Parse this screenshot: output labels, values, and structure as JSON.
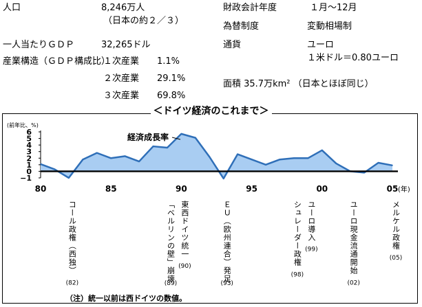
{
  "info": {
    "population_label": "人口",
    "population_value": "8,246万人",
    "population_note": "（日本の約２／３）",
    "gdp_per_capita_label": "一人当たりＧＤＰ",
    "gdp_per_capita_value": "32,265ドル",
    "industry_label": "産業構造（ＧＤＰ構成比）",
    "industries": [
      {
        "name": "１次産業",
        "share": "1.1%"
      },
      {
        "name": "２次産業",
        "share": "29.1%"
      },
      {
        "name": "３次産業",
        "share": "69.8%"
      }
    ],
    "fiscal_year_label": "財政会計年度",
    "fiscal_year_value": "１月〜12月",
    "fx_label": "為替制度",
    "fx_value": "変動相場制",
    "currency_label": "通貨",
    "currency_value": "ユーロ",
    "rate_value": "１米ドル＝0.80ユーロ",
    "area_text": "面積 35.7万km² （日本とほぼ同じ）"
  },
  "chart_data": {
    "type": "area",
    "title": "＜ドイツ経済のこれまで＞",
    "ylabel": "(前年比、%)",
    "series": [
      {
        "name": "経済成長率",
        "x": [
          1980,
          1981,
          1982,
          1983,
          1984,
          1985,
          1986,
          1987,
          1988,
          1989,
          1990,
          1991,
          1992,
          1993,
          1994,
          1995,
          1996,
          1997,
          1998,
          1999,
          2000,
          2001,
          2002,
          2003,
          2004,
          2005
        ],
        "values": [
          1.1,
          0.3,
          -1.0,
          1.8,
          2.8,
          2.0,
          2.3,
          1.5,
          3.8,
          3.6,
          5.7,
          5.1,
          2.2,
          -1.1,
          2.6,
          1.8,
          1.0,
          1.8,
          2.0,
          2.0,
          3.2,
          1.2,
          0.0,
          -0.2,
          1.3,
          0.9
        ]
      }
    ],
    "xticks": [
      {
        "value": 1980,
        "label": "80"
      },
      {
        "value": 1985,
        "label": "85"
      },
      {
        "value": 1990,
        "label": "90"
      },
      {
        "value": 1995,
        "label": "95"
      },
      {
        "value": 2000,
        "label": "00"
      },
      {
        "value": 2005,
        "label": "05"
      }
    ],
    "x_unit": "(年)",
    "yticks": [
      6,
      5,
      4,
      3,
      2,
      1,
      0,
      -1
    ],
    "ytick_labels": [
      "6",
      "5",
      "4",
      "3",
      "2",
      "1",
      "0",
      "−1"
    ],
    "xlim": [
      1980,
      2005
    ],
    "ylim": [
      -1,
      6
    ],
    "annotations": [
      {
        "year": 1982,
        "text": "コール政権（西独）",
        "year_label": "(82)"
      },
      {
        "year": 1989,
        "text": "「ベルリンの壁」崩壊",
        "year_label": "(89)"
      },
      {
        "year": 1990,
        "text": "東西ドイツ統一",
        "year_label": "(90)"
      },
      {
        "year": 1993,
        "text": "ＥＵ（欧州連合）発足",
        "year_label": "(93)"
      },
      {
        "year": 1998,
        "text": "シュレーダー政権",
        "year_label": "(98)"
      },
      {
        "year": 1999,
        "text": "ユーロ導入",
        "year_label": "(99)"
      },
      {
        "year": 2002,
        "text": "ユーロ現金流通開始",
        "year_label": "(02)"
      },
      {
        "year": 2005,
        "text": "メルケル政権",
        "year_label": "(05)"
      }
    ],
    "fill_color": "#a9cdf2",
    "line_color": "#2f6fb8"
  },
  "note": "（注）統一以前は西ドイツの数値。"
}
